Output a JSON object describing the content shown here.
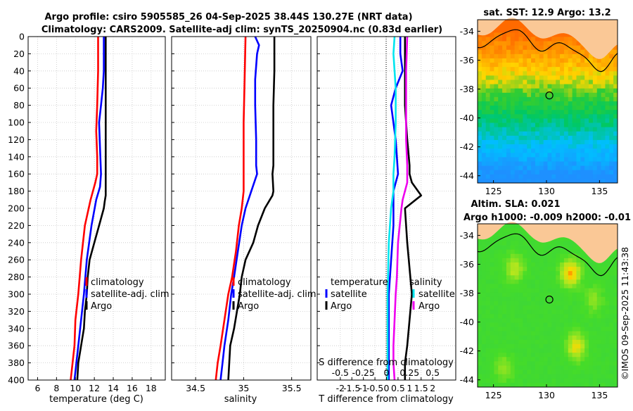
{
  "header": {
    "title_line1": "Argo profile: csiro 5905585_26 04-Sep-2025 38.44S 130.27E (NRT data)",
    "title_line2": "Climatology: CARS2009. Satellite-adj clim: synTS_20250904.nc (0.83d earlier)"
  },
  "colors": {
    "climatology": "#ff0000",
    "satellite": "#0000ff",
    "argo": "#000000",
    "salinity_satellite": "#00e5ee",
    "salinity_argo": "#ee00ee"
  },
  "copyright": "©IMOS 09-Sep-2025 11:43:38",
  "chart_data": [
    {
      "type": "line",
      "id": "temperature",
      "xlabel": "temperature (deg C)",
      "ylabel": "",
      "xlim": [
        5,
        19.5
      ],
      "ylim": [
        0,
        400
      ],
      "y_reversed": true,
      "grid": true,
      "xticks": [
        6,
        8,
        10,
        12,
        14,
        16,
        18
      ],
      "yticks": [
        0,
        20,
        40,
        60,
        80,
        100,
        120,
        140,
        160,
        180,
        200,
        220,
        240,
        260,
        280,
        300,
        320,
        340,
        360,
        380,
        400
      ],
      "legend": [
        "climatology",
        "satellite-adj. clim",
        "Argo"
      ],
      "series": [
        {
          "name": "climatology",
          "color": "#ff0000",
          "x": [
            12.4,
            12.4,
            12.3,
            12.2,
            12.3,
            12.3,
            12.1,
            11.6,
            11.0,
            10.6,
            10.3,
            10.0,
            9.9,
            9.7,
            9.5
          ],
          "y": [
            0,
            40,
            80,
            110,
            140,
            160,
            170,
            190,
            220,
            260,
            300,
            330,
            360,
            380,
            400
          ]
        },
        {
          "name": "satellite-adj. clim",
          "color": "#0000ff",
          "x": [
            13.0,
            13.0,
            12.9,
            12.7,
            12.5,
            12.6,
            12.7,
            12.6,
            12.2,
            11.7,
            11.2,
            10.9,
            10.6,
            10.3,
            10.1,
            9.9
          ],
          "y": [
            0,
            40,
            60,
            80,
            100,
            130,
            160,
            175,
            190,
            220,
            260,
            300,
            330,
            360,
            380,
            400
          ]
        },
        {
          "name": "Argo",
          "color": "#000000",
          "x": [
            13.2,
            13.2,
            13.2,
            13.2,
            13.2,
            13.2,
            13.2,
            13.1,
            13.0,
            12.5,
            12.0,
            11.5,
            11.3,
            11.2,
            11.0,
            10.9,
            10.6,
            10.3,
            10.2
          ],
          "y": [
            0,
            50,
            100,
            140,
            160,
            180,
            185,
            192,
            200,
            220,
            240,
            260,
            280,
            300,
            320,
            340,
            360,
            380,
            400
          ]
        }
      ]
    },
    {
      "type": "line",
      "id": "salinity",
      "xlabel": "salinity",
      "xlim": [
        34.25,
        35.7
      ],
      "ylim": [
        0,
        400
      ],
      "y_reversed": true,
      "grid": true,
      "xticks": [
        34.5,
        35,
        35.5
      ],
      "xticklabels": [
        "34.5",
        "35",
        "35.5"
      ],
      "legend": [
        "climatology",
        "satellite-adj. clim",
        "Argo"
      ],
      "series": [
        {
          "name": "climatology",
          "color": "#ff0000",
          "x": [
            35.02,
            35.01,
            35.0,
            35.0,
            35.0,
            35.0,
            34.98,
            34.95,
            34.92,
            34.88,
            34.84,
            34.8,
            34.76,
            34.73,
            34.71
          ],
          "y": [
            0,
            50,
            100,
            150,
            165,
            180,
            200,
            220,
            250,
            280,
            300,
            330,
            360,
            380,
            400
          ]
        },
        {
          "name": "satellite-adj. clim",
          "color": "#0000ff",
          "x": [
            35.12,
            35.16,
            35.14,
            35.12,
            35.12,
            35.13,
            35.13,
            35.14,
            35.08,
            35.02,
            34.98,
            34.94,
            34.9,
            34.87,
            34.84,
            34.8,
            34.78,
            34.76
          ],
          "y": [
            0,
            10,
            20,
            50,
            80,
            120,
            150,
            160,
            180,
            200,
            220,
            250,
            280,
            300,
            330,
            360,
            380,
            400
          ]
        },
        {
          "name": "Argo",
          "color": "#000000",
          "x": [
            35.32,
            35.32,
            35.31,
            35.31,
            35.31,
            35.3,
            35.31,
            35.3,
            35.22,
            35.15,
            35.1,
            35.02,
            34.98,
            34.96,
            34.93,
            34.9,
            34.86,
            34.84
          ],
          "y": [
            0,
            40,
            80,
            120,
            150,
            160,
            180,
            185,
            200,
            220,
            240,
            260,
            280,
            300,
            320,
            340,
            360,
            400
          ]
        }
      ]
    },
    {
      "type": "line",
      "id": "difference",
      "xlabel": "T difference from climatology",
      "top_label": "S difference from climatology",
      "xlim": [
        -3,
        3
      ],
      "ylim": [
        0,
        400
      ],
      "y_reversed": true,
      "grid": true,
      "xticks": [
        -2,
        -1.5,
        -1,
        -0.5,
        0,
        0.5,
        1,
        1.5,
        2
      ],
      "xticklabels": [
        "-2",
        "-1.5",
        "-1",
        "-0.5",
        "0",
        "0.5",
        "1",
        "1.5",
        "2"
      ],
      "s_xticklabels": [
        "-0.5",
        "-0.25",
        "0",
        "0.25",
        "0.5"
      ],
      "legend_left_title": "temperature",
      "legend_right_title": "salinity",
      "legend_left": [
        "satellite",
        "Argo"
      ],
      "legend_right": [
        "satellite",
        "Argo"
      ],
      "series": [
        {
          "name": "temperature satellite",
          "color": "#0000ff",
          "x": [
            0.6,
            0.6,
            0.7,
            0.4,
            0.2,
            0.4,
            0.5,
            0.3,
            0.3,
            0.2,
            0.1,
            0.1,
            0.1
          ],
          "y": [
            0,
            20,
            40,
            60,
            80,
            120,
            160,
            180,
            220,
            260,
            300,
            350,
            400
          ]
        },
        {
          "name": "temperature Argo",
          "color": "#000000",
          "x": [
            0.8,
            0.8,
            0.8,
            0.9,
            1.0,
            1.0,
            1.1,
            1.5,
            0.8,
            0.9,
            1.0,
            1.1,
            1.0,
            0.9,
            0.8,
            0.8
          ],
          "y": [
            0,
            40,
            80,
            120,
            150,
            160,
            170,
            185,
            200,
            240,
            270,
            300,
            330,
            360,
            380,
            400
          ]
        },
        {
          "name": "salinity satellite",
          "color": "#00e5ee",
          "x": [
            0.35,
            0.3,
            0.4,
            0.4,
            0.35,
            0.3,
            0.3,
            0.2,
            0.1,
            0.05,
            0.05,
            0.05
          ],
          "y": [
            0,
            20,
            60,
            100,
            140,
            160,
            180,
            200,
            240,
            300,
            350,
            400
          ]
        },
        {
          "name": "salinity Argo",
          "color": "#ee00ee",
          "x": [
            0.9,
            0.85,
            0.85,
            0.85,
            0.9,
            0.9,
            0.7,
            0.65,
            0.5,
            0.45,
            0.4,
            0.35,
            0.3,
            0.3,
            0.35
          ],
          "y": [
            0,
            40,
            80,
            120,
            150,
            170,
            190,
            200,
            240,
            280,
            300,
            330,
            360,
            380,
            400
          ]
        }
      ]
    },
    {
      "type": "heatmap",
      "id": "sst_map",
      "title": "sat. SST: 12.9 Argo: 13.2",
      "xlim": [
        123.5,
        136.7
      ],
      "ylim": [
        -44.5,
        -33.2
      ],
      "xticks": [
        125,
        130,
        135
      ],
      "yticks": [
        -34,
        -36,
        -38,
        -40,
        -42,
        -44
      ],
      "argo_position": [
        130.27,
        -38.44
      ]
    },
    {
      "type": "heatmap",
      "id": "sla_map",
      "title_line1": "Altim. SLA: 0.021",
      "title_line2": "Argo h1000: -0.009 h2000: -0.01",
      "xlim": [
        123.5,
        136.7
      ],
      "ylim": [
        -44.5,
        -33.2
      ],
      "xticks": [
        125,
        130,
        135
      ],
      "yticks": [
        -34,
        -36,
        -38,
        -40,
        -42,
        -44
      ],
      "argo_position": [
        130.27,
        -38.44
      ]
    }
  ]
}
